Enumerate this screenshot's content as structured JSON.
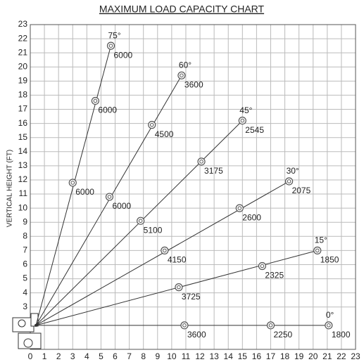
{
  "chart_data": {
    "type": "line",
    "title": "MAXIMUM LOAD CAPACITY CHART",
    "y_label": "VERTICAL HEIGHT (FT)",
    "xlim": [
      0,
      23
    ],
    "ylim": [
      0,
      23
    ],
    "xticks": [
      0,
      1,
      2,
      3,
      4,
      5,
      6,
      7,
      8,
      9,
      10,
      11,
      12,
      13,
      14,
      15,
      16,
      17,
      18,
      19,
      20,
      21,
      22,
      23
    ],
    "yticks": [
      3,
      4,
      5,
      6,
      7,
      8,
      9,
      10,
      11,
      12,
      13,
      14,
      15,
      16,
      17,
      18,
      19,
      20,
      21,
      22,
      23
    ],
    "grid": true,
    "color": "#333333",
    "boom_pivot": [
      0.4,
      1.7
    ],
    "series": [
      {
        "name": "75°",
        "x": [
          3.0,
          4.6,
          5.7
        ],
        "values": [
          11.8,
          17.6,
          21.5
        ],
        "loads": [
          6000,
          6000,
          6000
        ]
      },
      {
        "name": "60°",
        "x": [
          5.6,
          8.6,
          10.7
        ],
        "values": [
          10.8,
          15.9,
          19.4
        ],
        "loads": [
          6000,
          4500,
          3600
        ]
      },
      {
        "name": "45°",
        "x": [
          7.8,
          12.1,
          15.0
        ],
        "values": [
          9.1,
          13.3,
          16.2
        ],
        "loads": [
          5100,
          3175,
          2545
        ]
      },
      {
        "name": "30°",
        "x": [
          9.5,
          14.8,
          18.3
        ],
        "values": [
          7.0,
          10.0,
          11.9
        ],
        "loads": [
          4150,
          2600,
          2075
        ]
      },
      {
        "name": "15°",
        "x": [
          10.5,
          16.4,
          20.3
        ],
        "values": [
          4.4,
          5.9,
          7.0
        ],
        "loads": [
          3725,
          2325,
          1850
        ]
      },
      {
        "name": "0°",
        "x": [
          10.9,
          17.0,
          21.1
        ],
        "values": [
          1.7,
          1.7,
          1.7
        ],
        "loads": [
          3600,
          2250,
          1800
        ]
      }
    ]
  }
}
